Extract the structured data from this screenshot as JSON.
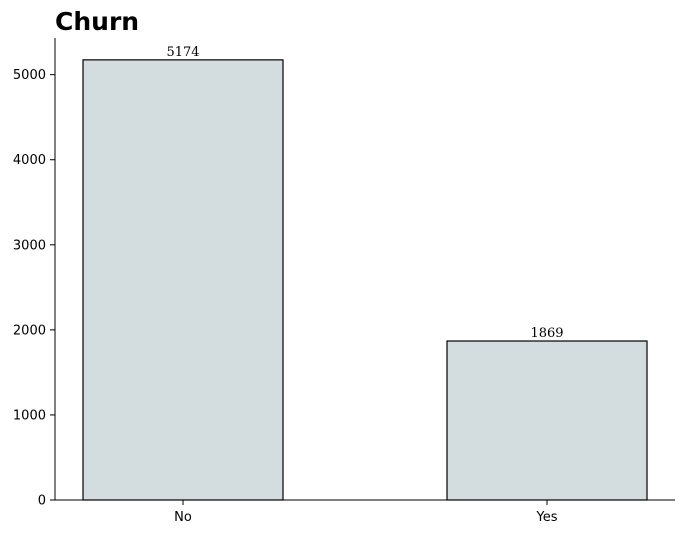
{
  "chart_data": {
    "type": "bar",
    "title": "Churn",
    "xlabel": "",
    "ylabel": "",
    "categories": [
      "No",
      "Yes"
    ],
    "values": [
      5174,
      1869
    ],
    "data_labels": [
      "5174",
      "1869"
    ],
    "yticks": [
      0,
      1000,
      2000,
      3000,
      4000,
      5000
    ],
    "ylim": [
      0,
      5431
    ],
    "grid": false,
    "bar_color": "#d3dcde",
    "bar_edge_color": "#000000"
  }
}
